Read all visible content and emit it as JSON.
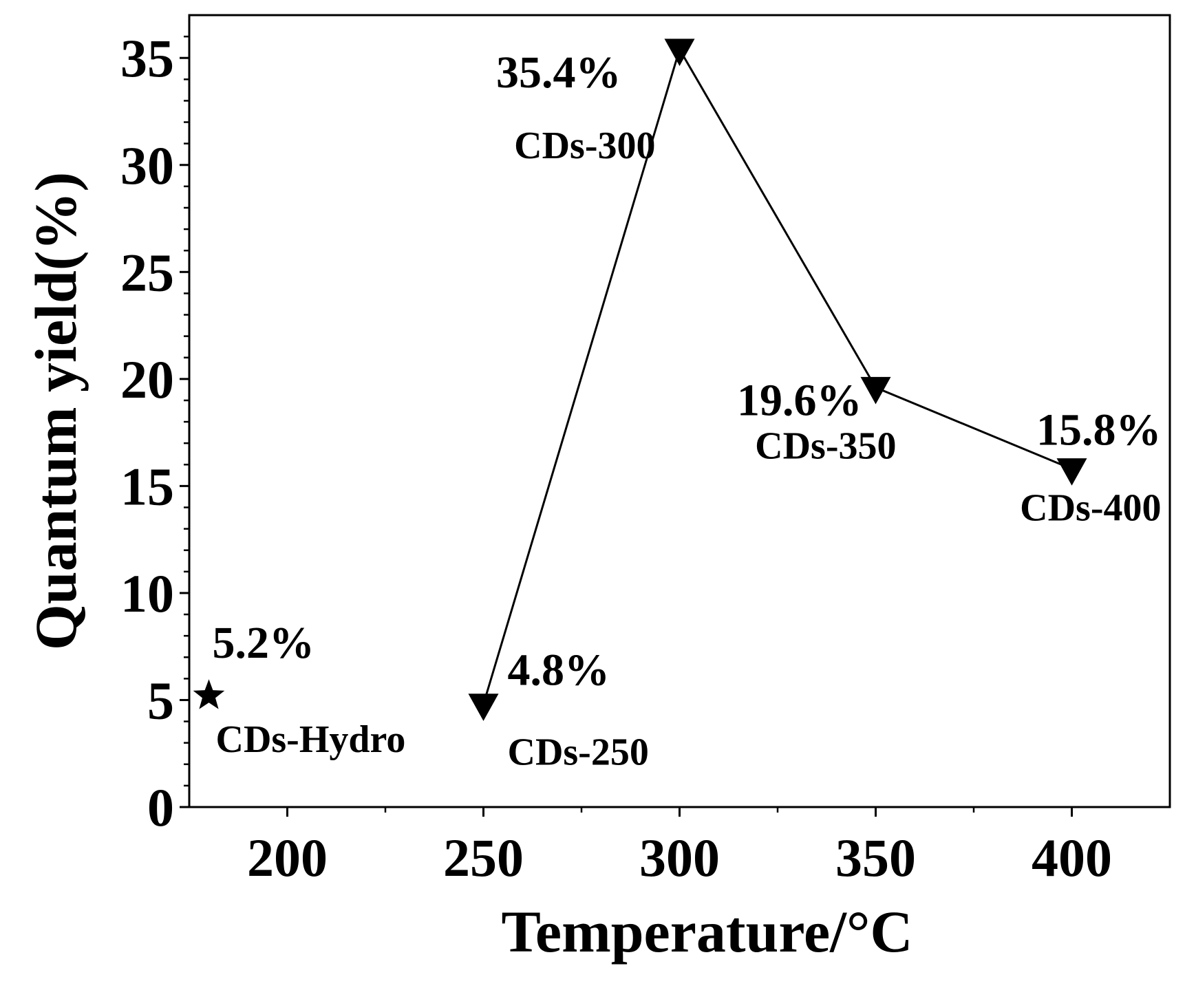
{
  "chart_data": {
    "type": "scatter",
    "xlabel": "Temperature/°C",
    "ylabel": "Quantum yield(%)",
    "xlim": [
      175,
      425
    ],
    "ylim": [
      0,
      37
    ],
    "x_ticks": [
      200,
      250,
      300,
      350,
      400
    ],
    "x_tick_labels": [
      "200",
      "250",
      "300",
      "350",
      "400"
    ],
    "y_ticks": [
      0,
      5,
      10,
      15,
      20,
      25,
      30,
      35
    ],
    "y_tick_labels": [
      "0",
      "5",
      "10",
      "15",
      "20",
      "25",
      "30",
      "35"
    ],
    "grid": false,
    "series": [
      {
        "marker": "star",
        "connected": false,
        "points": [
          {
            "x": 180,
            "y": 5.2,
            "value_label": "5.2%",
            "name_label": "CDs-Hydro"
          }
        ]
      },
      {
        "marker": "triangle-down",
        "connected": true,
        "points": [
          {
            "x": 250,
            "y": 4.8,
            "value_label": "4.8%",
            "name_label": "CDs-250"
          },
          {
            "x": 300,
            "y": 35.4,
            "value_label": "35.4%",
            "name_label": "CDs-300"
          },
          {
            "x": 350,
            "y": 19.6,
            "value_label": "19.6%",
            "name_label": "CDs-350"
          },
          {
            "x": 400,
            "y": 15.8,
            "value_label": "15.8%",
            "name_label": "CDs-400"
          }
        ]
      }
    ]
  }
}
